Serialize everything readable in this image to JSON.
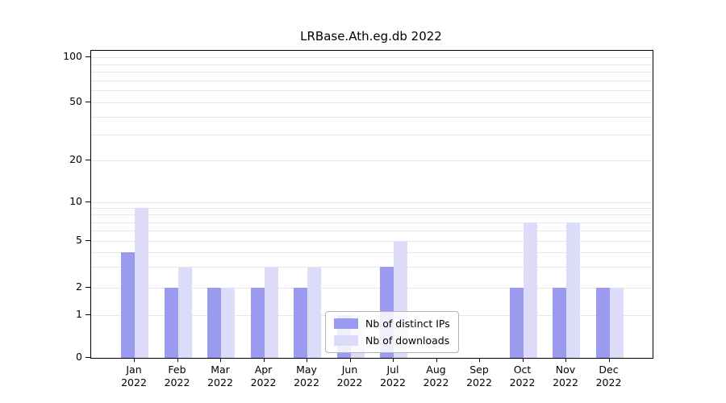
{
  "title": "LRBase.Ath.eg.db 2022",
  "axes": {
    "months": [
      "Jan",
      "Feb",
      "Mar",
      "Apr",
      "May",
      "Jun",
      "Jul",
      "Aug",
      "Sep",
      "Oct",
      "Nov",
      "Dec"
    ],
    "year": "2022",
    "grid_values": [
      1,
      2,
      3,
      4,
      5,
      6,
      7,
      8,
      9,
      10,
      20,
      30,
      40,
      50,
      60,
      70,
      80,
      90,
      100
    ]
  },
  "chart_data": {
    "type": "bar",
    "title": "LRBase.Ath.eg.db 2022",
    "xlabel": "",
    "ylabel": "",
    "categories": [
      "Jan 2022",
      "Feb 2022",
      "Mar 2022",
      "Apr 2022",
      "May 2022",
      "Jun 2022",
      "Jul 2022",
      "Aug 2022",
      "Sep 2022",
      "Oct 2022",
      "Nov 2022",
      "Dec 2022"
    ],
    "series": [
      {
        "name": "Nb of distinct IPs",
        "color": "#9a9aef",
        "values": [
          4,
          2,
          2,
          2,
          2,
          1,
          3,
          0,
          0,
          2,
          2,
          2
        ]
      },
      {
        "name": "Nb of downloads",
        "color": "#dcdcf9",
        "values": [
          9,
          3,
          2,
          3,
          3,
          1,
          5,
          0,
          0,
          7,
          7,
          2
        ]
      }
    ],
    "y_scale": "log",
    "y_ticks": [
      0,
      1,
      2,
      5,
      10,
      20,
      50,
      100
    ],
    "ylim": [
      0,
      100
    ],
    "grid": true,
    "legend_position": "lower center inside"
  }
}
